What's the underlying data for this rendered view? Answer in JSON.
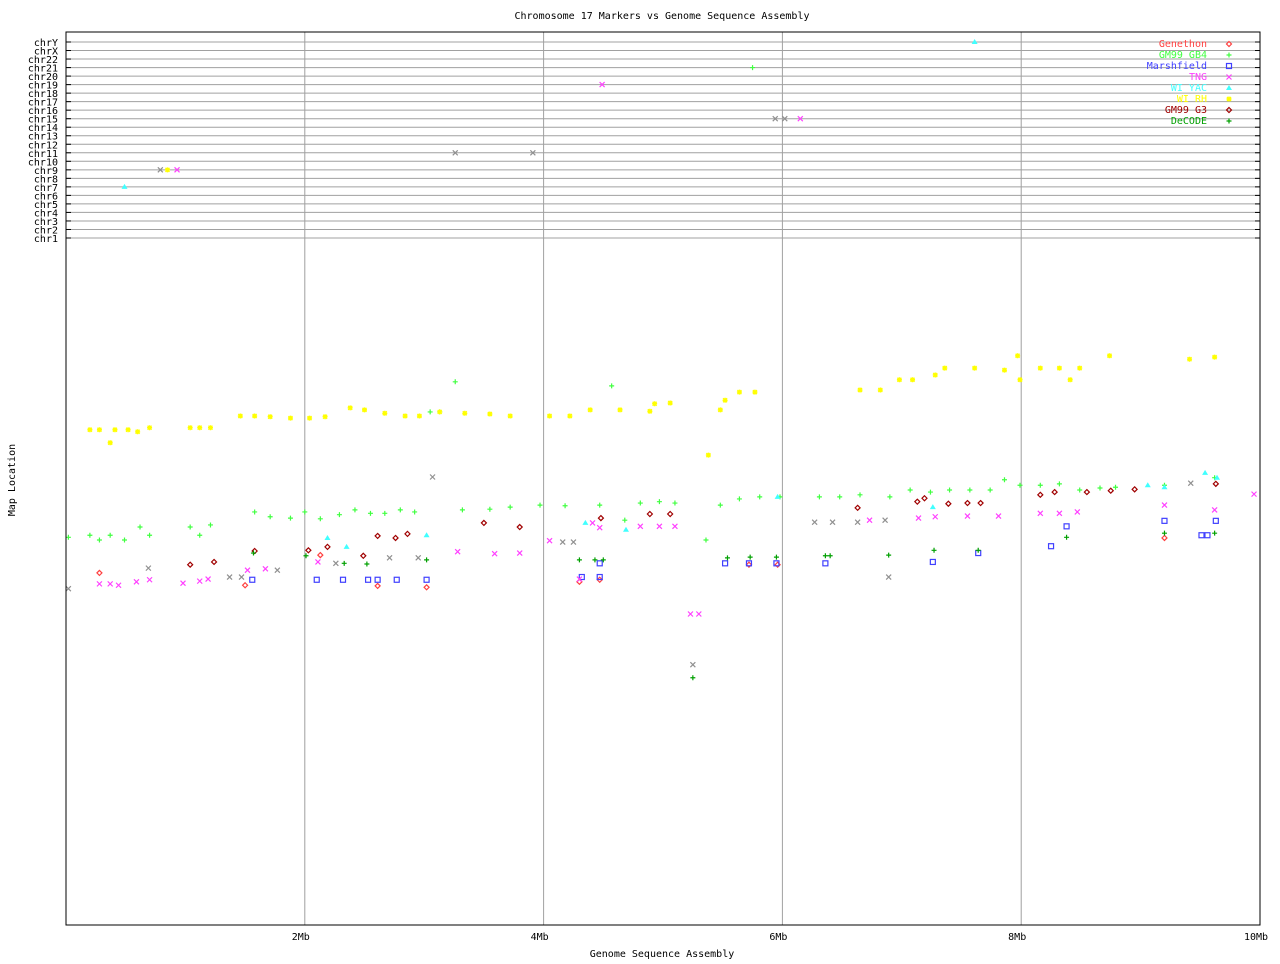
{
  "chart_data": {
    "type": "scatter",
    "title": "Chromosome 17 Markers vs Genome Sequence Assembly",
    "xlabel": "Genome Sequence Assembly",
    "ylabel": "Map Location",
    "xlim": [
      0,
      10
    ],
    "x_ticks": [
      {
        "v": 2,
        "label": "2Mb"
      },
      {
        "v": 4,
        "label": "4Mb"
      },
      {
        "v": 6,
        "label": "6Mb"
      },
      {
        "v": 8,
        "label": "8Mb"
      },
      {
        "v": 10,
        "label": "10Mb"
      }
    ],
    "grid": true,
    "legend_position": "top-right",
    "chromosomes": [
      "chr1",
      "chr2",
      "chr3",
      "chr4",
      "chr5",
      "chr6",
      "chr7",
      "chr8",
      "chr9",
      "chr10",
      "chr11",
      "chr12",
      "chr13",
      "chr14",
      "chr15",
      "chr16",
      "chr17",
      "chr18",
      "chr19",
      "chr20",
      "chr21",
      "chr22",
      "chrX",
      "chrY"
    ],
    "series": [
      {
        "name": "Genethon",
        "color": "#ff4040",
        "marker": "diamond",
        "points": [
          [
            0.28,
            51.4
          ],
          [
            1.5,
            49.6
          ],
          [
            2.13,
            54.0
          ],
          [
            2.61,
            49.5
          ],
          [
            3.02,
            49.3
          ],
          [
            4.3,
            50.1
          ],
          [
            4.47,
            50.4
          ],
          [
            5.72,
            52.6
          ],
          [
            5.96,
            52.6
          ],
          [
            9.2,
            56.5
          ]
        ]
      },
      {
        "name": "GM99 GB4",
        "color": "#40ff40",
        "marker": "plus",
        "points": [
          [
            0.02,
            56.6
          ],
          [
            0.2,
            56.9
          ],
          [
            0.28,
            56.2
          ],
          [
            0.37,
            56.9
          ],
          [
            0.49,
            56.2
          ],
          [
            0.62,
            58.1
          ],
          [
            0.7,
            56.9
          ],
          [
            1.04,
            58.1
          ],
          [
            1.12,
            56.9
          ],
          [
            1.21,
            58.4
          ],
          [
            1.58,
            60.3
          ],
          [
            1.71,
            59.6
          ],
          [
            1.88,
            59.4
          ],
          [
            2.0,
            60.3
          ],
          [
            2.13,
            59.3
          ],
          [
            2.29,
            59.9
          ],
          [
            2.42,
            60.6
          ],
          [
            2.55,
            60.1
          ],
          [
            2.67,
            60.1
          ],
          [
            2.8,
            60.6
          ],
          [
            2.92,
            60.3
          ],
          [
            3.05,
            74.9
          ],
          [
            3.13,
            74.9
          ],
          [
            3.26,
            79.3
          ],
          [
            3.32,
            60.6
          ],
          [
            3.55,
            60.7
          ],
          [
            3.72,
            61.0
          ],
          [
            3.97,
            61.3
          ],
          [
            4.18,
            61.2
          ],
          [
            4.47,
            61.3
          ],
          [
            4.57,
            78.7
          ],
          [
            4.68,
            59.1
          ],
          [
            4.81,
            61.6
          ],
          [
            4.97,
            61.8
          ],
          [
            5.1,
            61.6
          ],
          [
            5.36,
            56.2
          ],
          [
            5.48,
            61.3
          ],
          [
            5.64,
            62.2
          ],
          [
            5.81,
            62.5
          ],
          [
            5.98,
            62.5
          ],
          [
            6.31,
            62.5
          ],
          [
            6.48,
            62.5
          ],
          [
            6.65,
            62.8
          ],
          [
            6.9,
            62.5
          ],
          [
            7.07,
            63.5
          ],
          [
            7.24,
            63.2
          ],
          [
            7.4,
            63.5
          ],
          [
            7.57,
            63.5
          ],
          [
            7.74,
            63.5
          ],
          [
            7.86,
            65.0
          ],
          [
            7.99,
            64.2
          ],
          [
            8.16,
            64.2
          ],
          [
            8.32,
            64.4
          ],
          [
            8.49,
            63.5
          ],
          [
            8.66,
            63.8
          ],
          [
            8.79,
            63.9
          ],
          [
            9.2,
            64.2
          ],
          [
            9.62,
            65.3
          ]
        ]
      },
      {
        "name": "Marshfield",
        "color": "#4040ff",
        "marker": "square",
        "points": [
          [
            1.56,
            50.4
          ],
          [
            2.1,
            50.4
          ],
          [
            2.32,
            50.4
          ],
          [
            2.53,
            50.4
          ],
          [
            2.61,
            50.4
          ],
          [
            2.77,
            50.4
          ],
          [
            3.02,
            50.4
          ],
          [
            4.32,
            50.8
          ],
          [
            4.47,
            52.8
          ],
          [
            4.47,
            50.8
          ],
          [
            5.52,
            52.8
          ],
          [
            5.72,
            52.8
          ],
          [
            5.95,
            52.8
          ],
          [
            6.36,
            52.8
          ],
          [
            7.26,
            53.0
          ],
          [
            7.64,
            54.3
          ],
          [
            8.25,
            55.3
          ],
          [
            8.38,
            58.2
          ],
          [
            9.2,
            59.0
          ],
          [
            9.51,
            56.9
          ],
          [
            9.56,
            56.9
          ],
          [
            9.63,
            59.0
          ]
        ]
      },
      {
        "name": "TNG",
        "color": "#ff40ff",
        "marker": "cross",
        "points": [
          [
            0.28,
            49.8
          ],
          [
            0.37,
            49.8
          ],
          [
            0.44,
            49.6
          ],
          [
            0.59,
            50.1
          ],
          [
            0.7,
            50.4
          ],
          [
            0.98,
            49.9
          ],
          [
            1.12,
            50.2
          ],
          [
            1.19,
            50.5
          ],
          [
            1.52,
            51.8
          ],
          [
            1.67,
            52.0
          ],
          [
            2.11,
            53.0
          ],
          [
            3.28,
            54.5
          ],
          [
            3.59,
            54.2
          ],
          [
            3.8,
            54.3
          ],
          [
            4.05,
            56.1
          ],
          [
            4.3,
            50.5
          ],
          [
            4.41,
            58.7
          ],
          [
            4.47,
            58.0
          ],
          [
            4.81,
            58.2
          ],
          [
            4.97,
            58.2
          ],
          [
            5.1,
            58.2
          ],
          [
            5.23,
            45.4
          ],
          [
            5.3,
            45.4
          ],
          [
            6.73,
            59.1
          ],
          [
            7.14,
            59.4
          ],
          [
            7.28,
            59.6
          ],
          [
            7.55,
            59.7
          ],
          [
            7.81,
            59.7
          ],
          [
            8.16,
            60.1
          ],
          [
            8.32,
            60.1
          ],
          [
            8.47,
            60.3
          ],
          [
            9.2,
            61.3
          ],
          [
            9.62,
            60.6
          ],
          [
            9.95,
            62.9
          ]
        ]
      },
      {
        "name": "WI YAC",
        "color": "#40ffff",
        "marker": "triangle",
        "points": [
          [
            2.19,
            56.5
          ],
          [
            2.35,
            55.2
          ],
          [
            3.02,
            56.9
          ],
          [
            4.35,
            58.7
          ],
          [
            4.69,
            57.7
          ],
          [
            5.96,
            62.5
          ],
          [
            7.26,
            61.0
          ],
          [
            9.06,
            64.2
          ],
          [
            9.2,
            63.9
          ],
          [
            9.54,
            66.0
          ],
          [
            9.64,
            65.3
          ]
        ]
      },
      {
        "name": "WI RH",
        "color": "#ffff00",
        "marker": "star",
        "points": [
          [
            0.2,
            72.3
          ],
          [
            0.28,
            72.3
          ],
          [
            0.37,
            70.4
          ],
          [
            0.41,
            72.3
          ],
          [
            0.52,
            72.3
          ],
          [
            0.6,
            72.0
          ],
          [
            0.7,
            72.6
          ],
          [
            1.04,
            72.6
          ],
          [
            1.12,
            72.6
          ],
          [
            1.21,
            72.6
          ],
          [
            1.46,
            74.3
          ],
          [
            1.58,
            74.3
          ],
          [
            1.71,
            74.2
          ],
          [
            1.88,
            74.0
          ],
          [
            2.04,
            74.0
          ],
          [
            2.17,
            74.2
          ],
          [
            2.38,
            75.5
          ],
          [
            2.5,
            75.2
          ],
          [
            2.67,
            74.7
          ],
          [
            2.84,
            74.3
          ],
          [
            2.96,
            74.3
          ],
          [
            3.13,
            74.9
          ],
          [
            3.34,
            74.7
          ],
          [
            3.55,
            74.6
          ],
          [
            3.72,
            74.3
          ],
          [
            4.05,
            74.3
          ],
          [
            4.22,
            74.3
          ],
          [
            4.39,
            75.2
          ],
          [
            4.64,
            75.2
          ],
          [
            4.89,
            75.0
          ],
          [
            4.93,
            76.1
          ],
          [
            5.06,
            76.2
          ],
          [
            5.38,
            68.6
          ],
          [
            5.48,
            75.2
          ],
          [
            5.52,
            76.6
          ],
          [
            5.64,
            77.8
          ],
          [
            5.77,
            77.8
          ],
          [
            6.65,
            78.1
          ],
          [
            6.82,
            78.1
          ],
          [
            6.98,
            79.6
          ],
          [
            7.09,
            79.6
          ],
          [
            7.28,
            80.3
          ],
          [
            7.36,
            81.3
          ],
          [
            7.61,
            81.3
          ],
          [
            7.86,
            81.0
          ],
          [
            7.97,
            83.1
          ],
          [
            7.99,
            79.6
          ],
          [
            8.16,
            81.3
          ],
          [
            8.32,
            81.3
          ],
          [
            8.41,
            79.6
          ],
          [
            8.49,
            81.3
          ],
          [
            8.74,
            83.1
          ],
          [
            9.41,
            82.6
          ],
          [
            9.62,
            82.9
          ]
        ]
      },
      {
        "name": "GM99 G3",
        "color": "#a00000",
        "marker": "diamond",
        "points": [
          [
            1.04,
            52.6
          ],
          [
            1.24,
            53.0
          ],
          [
            1.58,
            54.6
          ],
          [
            2.03,
            54.7
          ],
          [
            2.19,
            55.2
          ],
          [
            2.49,
            53.9
          ],
          [
            2.61,
            56.8
          ],
          [
            2.76,
            56.5
          ],
          [
            2.86,
            57.1
          ],
          [
            3.5,
            58.7
          ],
          [
            3.8,
            58.1
          ],
          [
            4.48,
            59.4
          ],
          [
            4.89,
            60.0
          ],
          [
            5.06,
            60.0
          ],
          [
            6.63,
            60.9
          ],
          [
            7.13,
            61.8
          ],
          [
            7.19,
            62.3
          ],
          [
            7.39,
            61.5
          ],
          [
            7.55,
            61.6
          ],
          [
            7.66,
            61.6
          ],
          [
            8.16,
            62.8
          ],
          [
            8.28,
            63.2
          ],
          [
            8.55,
            63.2
          ],
          [
            8.75,
            63.4
          ],
          [
            8.95,
            63.6
          ],
          [
            9.63,
            64.4
          ]
        ]
      },
      {
        "name": "DeCODE",
        "color": "#00a000",
        "marker": "plus",
        "points": [
          [
            1.57,
            54.3
          ],
          [
            2.01,
            53.9
          ],
          [
            2.33,
            52.8
          ],
          [
            2.52,
            52.7
          ],
          [
            3.02,
            53.3
          ],
          [
            4.3,
            53.3
          ],
          [
            4.43,
            53.3
          ],
          [
            4.5,
            53.3
          ],
          [
            5.25,
            36.1
          ],
          [
            5.54,
            53.6
          ],
          [
            5.73,
            53.7
          ],
          [
            5.95,
            53.7
          ],
          [
            6.36,
            53.9
          ],
          [
            6.4,
            53.9
          ],
          [
            6.89,
            54.0
          ],
          [
            7.27,
            54.7
          ],
          [
            7.64,
            54.7
          ],
          [
            8.38,
            56.6
          ],
          [
            9.2,
            57.2
          ],
          [
            9.62,
            57.2
          ]
        ]
      },
      {
        "name": "",
        "color": "#909090",
        "marker": "cross",
        "points": [
          [
            0.02,
            49.1
          ],
          [
            0.69,
            52.1
          ],
          [
            1.37,
            50.8
          ],
          [
            1.47,
            50.8
          ],
          [
            1.77,
            51.8
          ],
          [
            2.26,
            52.8
          ],
          [
            2.71,
            53.6
          ],
          [
            2.95,
            53.6
          ],
          [
            3.07,
            65.4
          ],
          [
            4.16,
            55.9
          ],
          [
            4.25,
            55.9
          ],
          [
            6.27,
            58.8
          ],
          [
            6.42,
            58.8
          ],
          [
            6.63,
            58.8
          ],
          [
            6.86,
            59.1
          ],
          [
            5.25,
            38.0
          ],
          [
            6.89,
            50.8
          ],
          [
            9.42,
            64.5
          ]
        ]
      }
    ],
    "chromosome_hits": [
      {
        "series": "WI YAC",
        "chr": "chrY",
        "x": 7.61
      },
      {
        "series": "GM99 GB4",
        "chr": "chr21",
        "x": 5.75
      },
      {
        "series": "TNG",
        "chr": "chr19",
        "x": 4.49
      },
      {
        "series": "",
        "chr": "chr15",
        "x": 5.94
      },
      {
        "series": "",
        "chr": "chr15",
        "x": 6.02
      },
      {
        "series": "TNG",
        "chr": "chr15",
        "x": 6.15
      },
      {
        "series": "",
        "chr": "chr11",
        "x": 3.26
      },
      {
        "series": "",
        "chr": "chr11",
        "x": 3.91
      },
      {
        "series": "",
        "chr": "chr9",
        "x": 0.79
      },
      {
        "series": "WI RH",
        "chr": "chr9",
        "x": 0.85
      },
      {
        "series": "TNG",
        "chr": "chr9",
        "x": 0.93
      },
      {
        "series": "WI YAC",
        "chr": "chr7",
        "x": 0.49
      }
    ]
  }
}
